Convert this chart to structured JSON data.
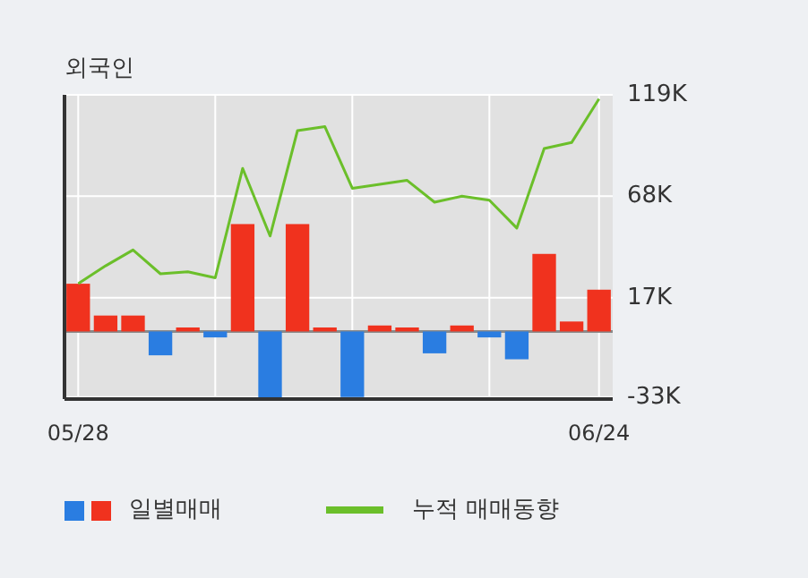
{
  "chart_data": {
    "type": "bar",
    "title": "외국인",
    "categories": [
      "05/28",
      null,
      null,
      null,
      null,
      null,
      null,
      null,
      null,
      null,
      null,
      null,
      null,
      null,
      null,
      null,
      null,
      null,
      null,
      "06/24"
    ],
    "series": [
      {
        "name": "일별매매",
        "colors": [
          "#f0321e",
          "#f0321e",
          "#f0321e",
          "#2a7de1",
          "#f0321e",
          "#2a7de1",
          "#f0321e",
          "#2a7de1",
          "#f0321e",
          "#f0321e",
          "#2a7de1",
          "#f0321e",
          "#f0321e",
          "#2a7de1",
          "#f0321e",
          "#2a7de1",
          "#2a7de1",
          "#f0321e",
          "#f0321e",
          "#f0321e"
        ],
        "values": [
          24,
          8,
          8,
          -12,
          2,
          -3,
          54,
          -34,
          54,
          2,
          -33,
          3,
          2,
          -11,
          3,
          -3,
          -14,
          39,
          5,
          21
        ]
      },
      {
        "name": "누적 매매동향",
        "type": "line",
        "color": "#6bbf2a",
        "values": [
          24,
          33,
          41,
          29,
          30,
          27,
          82,
          48,
          101,
          103,
          72,
          74,
          76,
          65,
          68,
          66,
          52,
          92,
          95,
          117
        ]
      }
    ],
    "ylim": [
      -34,
      119
    ],
    "yticks": [
      {
        "value": -33,
        "label": "-33K"
      },
      {
        "value": 17,
        "label": "17K"
      },
      {
        "value": 68,
        "label": "68K"
      },
      {
        "value": 119,
        "label": "119K"
      }
    ],
    "grid": true,
    "legend": "bottom"
  }
}
